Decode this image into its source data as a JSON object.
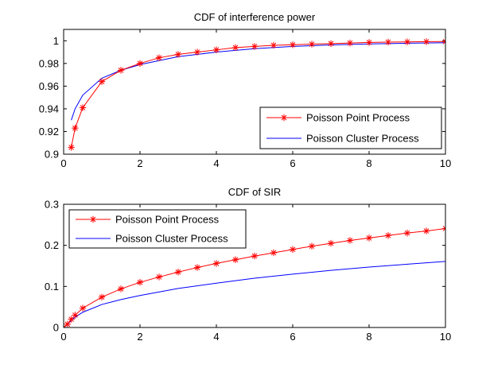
{
  "chart_data": [
    {
      "type": "line",
      "title": "CDF of interference power",
      "xlabel": "",
      "ylabel": "",
      "xlim": [
        0,
        10
      ],
      "ylim": [
        0.9,
        1.01
      ],
      "xticks": [
        0,
        2,
        4,
        6,
        8,
        10
      ],
      "xtick_labels": [
        "0",
        "2",
        "4",
        "6",
        "8",
        "10"
      ],
      "yticks": [
        0.9,
        0.92,
        0.94,
        0.96,
        0.98,
        1.0
      ],
      "ytick_labels": [
        "0.9",
        "0.92",
        "0.94",
        "0.96",
        "0.98",
        "1"
      ],
      "legend_position": "bottom-right",
      "series": [
        {
          "name": "Poisson Point Process",
          "color": "#ff0000",
          "marker": "asterisk",
          "x": [
            0.2,
            0.3,
            0.5,
            1.0,
            1.5,
            2.0,
            2.5,
            3.0,
            3.5,
            4.0,
            4.5,
            5.0,
            5.5,
            6.0,
            6.5,
            7.0,
            7.5,
            8.0,
            8.5,
            9.0,
            9.5,
            10.0
          ],
          "values": [
            0.906,
            0.923,
            0.941,
            0.964,
            0.974,
            0.98,
            0.985,
            0.988,
            0.99,
            0.992,
            0.994,
            0.995,
            0.996,
            0.9965,
            0.997,
            0.9975,
            0.998,
            0.9985,
            0.9988,
            0.999,
            0.9992,
            0.9993
          ]
        },
        {
          "name": "Poisson Cluster Process",
          "color": "#0000ff",
          "marker": "none",
          "x": [
            0.2,
            0.3,
            0.5,
            1.0,
            1.5,
            2.0,
            3.0,
            4.0,
            5.0,
            6.0,
            7.0,
            8.0,
            9.0,
            10.0
          ],
          "values": [
            0.93,
            0.94,
            0.952,
            0.967,
            0.974,
            0.979,
            0.986,
            0.99,
            0.993,
            0.995,
            0.9963,
            0.9972,
            0.9978,
            0.9983
          ]
        }
      ]
    },
    {
      "type": "line",
      "title": "CDF of SIR",
      "xlabel": "",
      "ylabel": "",
      "xlim": [
        0,
        10
      ],
      "ylim": [
        0,
        0.3
      ],
      "xticks": [
        0,
        2,
        4,
        6,
        8,
        10
      ],
      "xtick_labels": [
        "0",
        "2",
        "4",
        "6",
        "8",
        "10"
      ],
      "yticks": [
        0,
        0.1,
        0.2,
        0.3
      ],
      "ytick_labels": [
        "0",
        "0.1",
        "0.2",
        "0.3"
      ],
      "legend_position": "top-left",
      "series": [
        {
          "name": "Poisson Point Process",
          "color": "#ff0000",
          "marker": "asterisk",
          "x": [
            0,
            0.1,
            0.2,
            0.3,
            0.5,
            1.0,
            1.5,
            2.0,
            2.5,
            3.0,
            3.5,
            4.0,
            4.5,
            5.0,
            5.5,
            6.0,
            6.5,
            7.0,
            7.5,
            8.0,
            8.5,
            9.0,
            9.5,
            10.0
          ],
          "values": [
            0.0,
            0.008,
            0.02,
            0.03,
            0.047,
            0.074,
            0.094,
            0.11,
            0.123,
            0.135,
            0.146,
            0.156,
            0.165,
            0.174,
            0.182,
            0.19,
            0.198,
            0.205,
            0.212,
            0.218,
            0.224,
            0.23,
            0.235,
            0.241
          ]
        },
        {
          "name": "Poisson Cluster Process",
          "color": "#0000ff",
          "marker": "none",
          "x": [
            0,
            0.1,
            0.2,
            0.3,
            0.5,
            1.0,
            1.5,
            2.0,
            3.0,
            4.0,
            5.0,
            6.0,
            7.0,
            8.0,
            9.0,
            10.0
          ],
          "values": [
            0.0,
            0.007,
            0.017,
            0.025,
            0.037,
            0.056,
            0.068,
            0.078,
            0.095,
            0.108,
            0.12,
            0.13,
            0.139,
            0.147,
            0.154,
            0.161
          ]
        }
      ]
    }
  ]
}
